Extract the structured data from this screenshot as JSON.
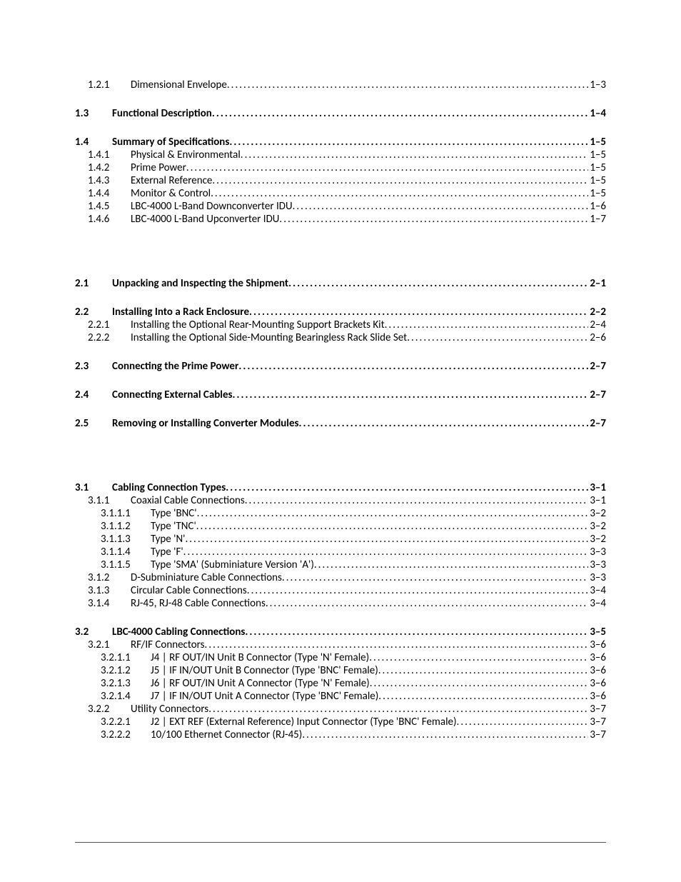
{
  "toc": [
    {
      "level": 2,
      "num": "1.2.1",
      "title": "Dimensional Envelope",
      "page": "1–3",
      "gap_after": "group"
    },
    {
      "level": 1,
      "num": "1.3",
      "title": "Functional Description",
      "page": "1–4",
      "gap_after": "group"
    },
    {
      "level": 1,
      "num": "1.4",
      "title": "Summary of Specifications",
      "page": "1–5"
    },
    {
      "level": 2,
      "num": "1.4.1",
      "title": "Physical & Environmental",
      "page": "1–5"
    },
    {
      "level": 2,
      "num": "1.4.2",
      "title": "Prime Power",
      "page": "1–5"
    },
    {
      "level": 2,
      "num": "1.4.3",
      "title": "External Reference",
      "page": "1–5"
    },
    {
      "level": 2,
      "num": "1.4.4",
      "title": "Monitor & Control",
      "page": "1–5"
    },
    {
      "level": 2,
      "num": "1.4.5",
      "title": "LBC-4000 L-Band Downconverter IDU",
      "page": "1–6"
    },
    {
      "level": 2,
      "num": "1.4.6",
      "title": "LBC-4000 L-Band Upconverter IDU",
      "page": "1–7",
      "gap_after": "big"
    },
    {
      "level": 1,
      "num": "2.1",
      "title": "Unpacking and Inspecting the Shipment",
      "page": "2–1",
      "gap_after": "group"
    },
    {
      "level": 1,
      "num": "2.2",
      "title": "Installing Into a Rack Enclosure",
      "page": "2–2"
    },
    {
      "level": 2,
      "num": "2.2.1",
      "title": "Installing the Optional Rear-Mounting Support Brackets Kit",
      "page": "2–4"
    },
    {
      "level": 2,
      "num": "2.2.2",
      "title": "Installing the Optional Side-Mounting Bearingless Rack Slide Set",
      "page": "2–6",
      "gap_after": "group"
    },
    {
      "level": 1,
      "num": "2.3",
      "title": "Connecting the Prime Power",
      "page": "2–7",
      "gap_after": "group"
    },
    {
      "level": 1,
      "num": "2.4",
      "title": "Connecting External Cables",
      "page": "2–7",
      "gap_after": "group"
    },
    {
      "level": 1,
      "num": "2.5",
      "title": "Removing or Installing Converter Modules",
      "page": "2–7",
      "gap_after": "big"
    },
    {
      "level": 1,
      "num": "3.1",
      "title": "Cabling Connection Types",
      "page": "3–1"
    },
    {
      "level": 2,
      "num": "3.1.1",
      "title": "Coaxial Cable Connections",
      "page": "3–1"
    },
    {
      "level": 3,
      "num": "3.1.1.1",
      "title": "Type 'BNC'",
      "page": "3–2"
    },
    {
      "level": 3,
      "num": "3.1.1.2",
      "title": "Type 'TNC'",
      "page": "3–2"
    },
    {
      "level": 3,
      "num": "3.1.1.3",
      "title": "Type 'N'",
      "page": "3–2"
    },
    {
      "level": 3,
      "num": "3.1.1.4",
      "title": "Type 'F'",
      "page": "3–3"
    },
    {
      "level": 3,
      "num": "3.1.1.5",
      "title": "Type 'SMA' (Subminiature Version 'A')",
      "page": "3–3"
    },
    {
      "level": 2,
      "num": "3.1.2",
      "title": "D-Subminiature Cable Connections",
      "page": "3–3"
    },
    {
      "level": 2,
      "num": "3.1.3",
      "title": "Circular Cable Connections",
      "page": "3–4"
    },
    {
      "level": 2,
      "num": "3.1.4",
      "title": "RJ-45, RJ-48 Cable Connections",
      "page": "3–4",
      "gap_after": "group"
    },
    {
      "level": 1,
      "num": "3.2",
      "title": "LBC-4000  Cabling Connections",
      "page": "3–5"
    },
    {
      "level": 2,
      "num": "3.2.1",
      "title": "RF/IF Connectors",
      "page": "3–6"
    },
    {
      "level": 3,
      "num": "3.2.1.1",
      "title": "J4 | RF OUT/IN Unit B Connector (Type 'N' Female)",
      "page": "3–6"
    },
    {
      "level": 3,
      "num": "3.2.1.2",
      "title": "J5  | IF IN/OUT Unit B Connector (Type 'BNC' Female)",
      "page": "3–6"
    },
    {
      "level": 3,
      "num": "3.2.1.3",
      "title": "J6 | RF OUT/IN Unit A Connector (Type 'N' Female)",
      "page": "3–6"
    },
    {
      "level": 3,
      "num": "3.2.1.4",
      "title": "J7 | IF IN/OUT Unit A Connector (Type 'BNC' Female)",
      "page": "3–6"
    },
    {
      "level": 2,
      "num": "3.2.2",
      "title": "Utility Connectors",
      "page": "3–7"
    },
    {
      "level": 3,
      "num": "3.2.2.1",
      "title": "J2 | EXT REF (External Reference) Input Connector (Type 'BNC' Female)",
      "page": "3–7"
    },
    {
      "level": 3,
      "num": "3.2.2.2",
      "title": "10/100 Ethernet Connector (RJ-45)",
      "page": "3–7"
    }
  ]
}
